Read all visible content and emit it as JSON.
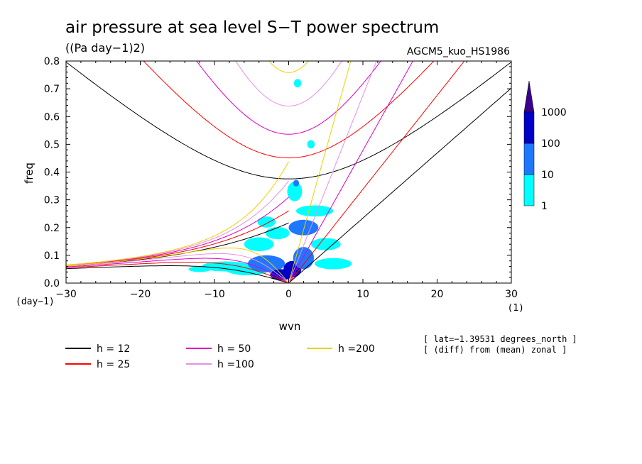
{
  "chart_data": {
    "type": "contour",
    "title": "air pressure at sea level S−T power spectrum",
    "units": "((Pa day−1)2)",
    "model": "AGCM5_kuo_HS1986",
    "xlabel": "wvn",
    "ylabel": "freq",
    "x_unit": "(1)",
    "y_unit": "(day−1)",
    "xlim": [
      -30,
      30
    ],
    "ylim": [
      0,
      0.8
    ],
    "x_ticks": [
      "−30",
      "−20",
      "−10",
      "0",
      "10",
      "20",
      "30"
    ],
    "y_ticks": [
      "0.0",
      "0.1",
      "0.2",
      "0.3",
      "0.4",
      "0.5",
      "0.6",
      "0.7",
      "0.8"
    ],
    "colorbar": {
      "levels": [
        "1",
        "10",
        "100",
        "1000"
      ],
      "colors": [
        "#00ffff",
        "#1e78ff",
        "#0000c8",
        "#3a008c"
      ],
      "extend": "max"
    },
    "spectrum_blobs": [
      {
        "x": -8.5,
        "y": 0.06,
        "rx": 3.2,
        "ry": 0.018,
        "level": 0
      },
      {
        "x": -5.5,
        "y": 0.05,
        "rx": 3.0,
        "ry": 0.022,
        "level": 0
      },
      {
        "x": -3.0,
        "y": 0.07,
        "rx": 2.5,
        "ry": 0.03,
        "level": 1
      },
      {
        "x": -1.0,
        "y": 0.03,
        "rx": 1.5,
        "ry": 0.02,
        "level": 2
      },
      {
        "x": 0.5,
        "y": 0.05,
        "rx": 1.2,
        "ry": 0.03,
        "level": 2
      },
      {
        "x": 2.0,
        "y": 0.09,
        "rx": 1.4,
        "ry": 0.04,
        "level": 1
      },
      {
        "x": -4.0,
        "y": 0.14,
        "rx": 2.0,
        "ry": 0.025,
        "level": 0
      },
      {
        "x": -1.5,
        "y": 0.18,
        "rx": 1.6,
        "ry": 0.022,
        "level": 0
      },
      {
        "x": 2.0,
        "y": 0.2,
        "rx": 2.0,
        "ry": 0.028,
        "level": 1
      },
      {
        "x": 5.0,
        "y": 0.14,
        "rx": 2.0,
        "ry": 0.022,
        "level": 0
      },
      {
        "x": 3.5,
        "y": 0.26,
        "rx": 2.5,
        "ry": 0.02,
        "level": 0
      },
      {
        "x": 0.8,
        "y": 0.33,
        "rx": 1.0,
        "ry": 0.035,
        "level": 0
      },
      {
        "x": 1.0,
        "y": 0.36,
        "rx": 0.4,
        "ry": 0.012,
        "level": 1
      },
      {
        "x": -3.0,
        "y": 0.22,
        "rx": 1.2,
        "ry": 0.02,
        "level": 0
      },
      {
        "x": 6.0,
        "y": 0.07,
        "rx": 2.5,
        "ry": 0.02,
        "level": 0
      },
      {
        "x": 1.2,
        "y": 0.72,
        "rx": 0.5,
        "ry": 0.015,
        "level": 0
      },
      {
        "x": 3.0,
        "y": 0.5,
        "rx": 0.5,
        "ry": 0.015,
        "level": 0
      },
      {
        "x": -12.0,
        "y": 0.05,
        "rx": 1.5,
        "ry": 0.01,
        "level": 0
      }
    ],
    "dispersion_curves": [
      {
        "h": 12,
        "color": "#000000"
      },
      {
        "h": 25,
        "color": "#ff0000"
      },
      {
        "h": 50,
        "color": "#e000c8"
      },
      {
        "h": 100,
        "color": "#e890e0"
      },
      {
        "h": 200,
        "color": "#f0d000"
      }
    ]
  },
  "info": {
    "line1": "[ lat=−1.39531 degrees_north ]",
    "line2": "[ (diff) from (mean) zonal ]"
  },
  "legend": [
    {
      "label": "h = 12",
      "color": "#000000"
    },
    {
      "label": "h = 25",
      "color": "#ff0000"
    },
    {
      "label": "h = 50",
      "color": "#e000c8"
    },
    {
      "label": "h =100",
      "color": "#e890e0"
    },
    {
      "label": "h =200",
      "color": "#f0d000"
    }
  ]
}
